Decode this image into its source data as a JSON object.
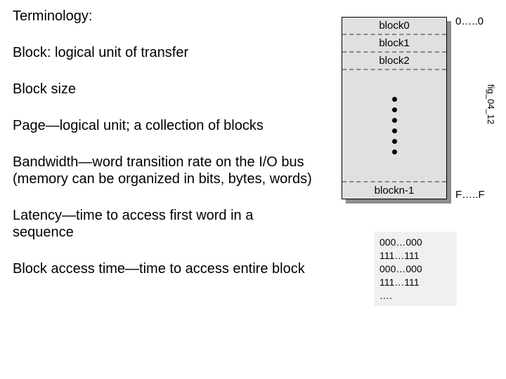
{
  "text": {
    "heading": "Terminology:",
    "p1": "Block: logical unit of transfer",
    "p2": "Block size",
    "p3": "Page—logical unit; a collection of blocks",
    "p4": "Bandwidth—word transition rate on the I/O bus (memory can be organized in bits, bytes, words)",
    "p5": "Latency—time to access first word in a sequence",
    "p6": "Block access time—time to access entire block"
  },
  "figure": {
    "caption": "fig_04_12",
    "block_labels": [
      "block0",
      "block1",
      "block2",
      "blockn-1"
    ],
    "addr_top": "0…..0",
    "addr_bottom": "F…..F",
    "dot_count": 6,
    "colors": {
      "memory_fill": "#e0e0e0",
      "memory_border": "#000000",
      "shadow": "#8c8c8c",
      "dash": "#888888",
      "dot": "#000000",
      "bits_bg": "#f0f0f0"
    },
    "bit_patterns": [
      "000…000",
      "111…111",
      "000…000",
      "111…111",
      "…."
    ]
  }
}
